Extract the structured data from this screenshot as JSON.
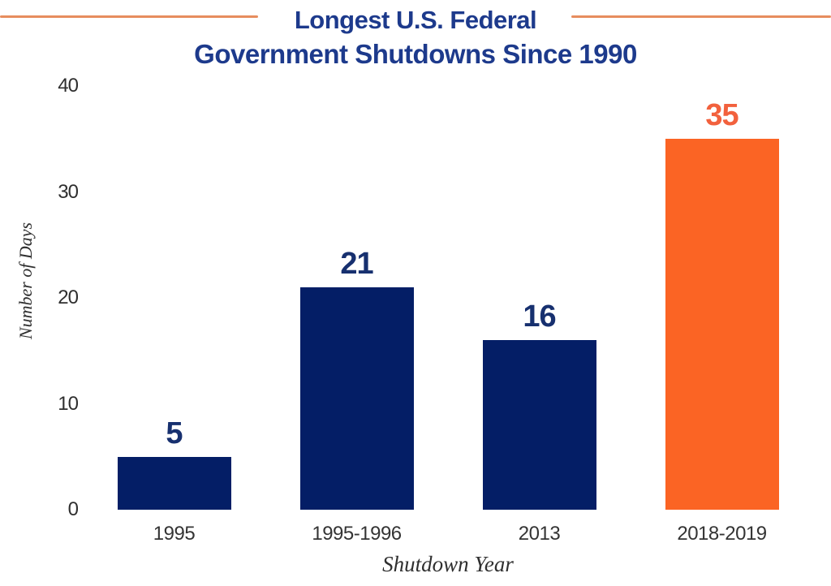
{
  "title": {
    "line1": "Longest U.S. Federal",
    "line2": "Government Shutdowns Since 1990"
  },
  "colors": {
    "bar_navy": "#041e66",
    "bar_orange": "#fb6424",
    "value_label_navy": "#17306f",
    "value_label_orange": "#f2613d",
    "title_navy": "#1d3a8c",
    "rule_orange": "#e78d5e",
    "tick_text": "#2f2f2f"
  },
  "chart_data": {
    "type": "bar",
    "title": "Longest U.S. Federal Government Shutdowns Since 1990",
    "categories": [
      "1995",
      "1995-1996",
      "2013",
      "2018-2019"
    ],
    "values": [
      5,
      21,
      16,
      35
    ],
    "xlabel": "Shutdown Year",
    "ylabel": "Number of Days",
    "ylim": [
      0,
      40
    ],
    "yticks": [
      0,
      10,
      20,
      30,
      40
    ],
    "grid": false,
    "legend": false,
    "highlight_index": 3,
    "annotation": "Each bar is labeled with its value; the 2018-2019 shutdown bar is highlighted in orange, all others are navy."
  }
}
